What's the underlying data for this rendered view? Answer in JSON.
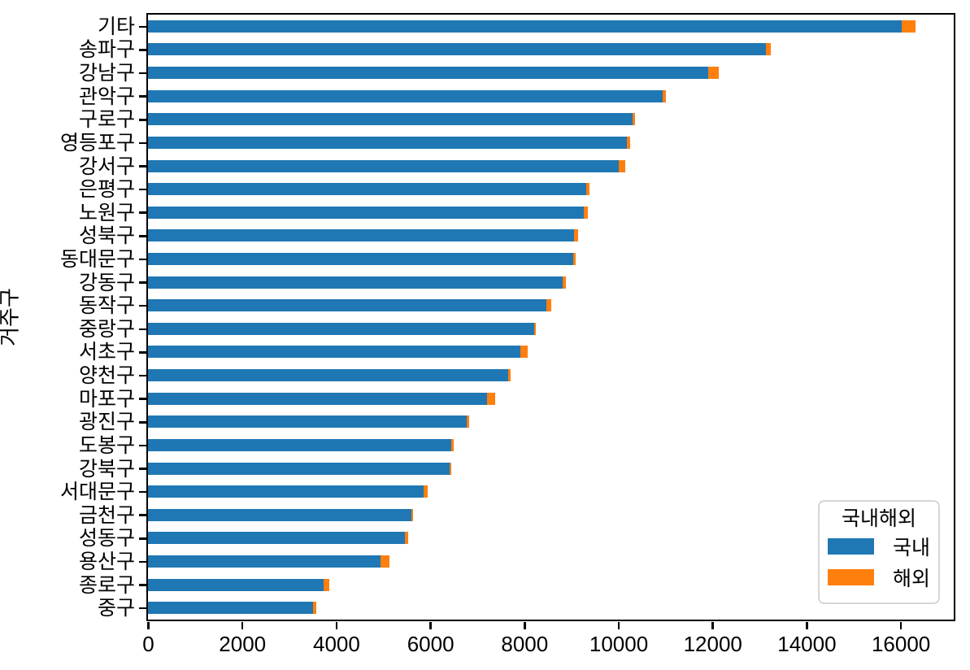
{
  "chart_data": {
    "type": "bar",
    "orientation": "horizontal",
    "stacked": true,
    "title": "",
    "xlabel": "",
    "ylabel": "거주구",
    "xlim": [
      0,
      17130
    ],
    "xticks": [
      0,
      2000,
      4000,
      6000,
      8000,
      10000,
      12000,
      14000,
      16000
    ],
    "grid": false,
    "legend_title": "국내해외",
    "legend_position": "lower right",
    "categories": [
      "기타",
      "송파구",
      "강남구",
      "관악구",
      "구로구",
      "영등포구",
      "강서구",
      "은평구",
      "노원구",
      "성북구",
      "동대문구",
      "강동구",
      "동작구",
      "중랑구",
      "서초구",
      "양천구",
      "마포구",
      "광진구",
      "도봉구",
      "강북구",
      "서대문구",
      "금천구",
      "성동구",
      "용산구",
      "종로구",
      "중구"
    ],
    "series": [
      {
        "name": "국내",
        "color": "#1f77b4",
        "values": [
          16030,
          13135,
          11910,
          10935,
          10310,
          10180,
          10010,
          9320,
          9265,
          9050,
          9040,
          8815,
          8470,
          8210,
          7910,
          7650,
          7200,
          6770,
          6455,
          6415,
          5860,
          5605,
          5470,
          4950,
          3740,
          3510
        ]
      },
      {
        "name": "해외",
        "color": "#ff7f0e",
        "values": [
          290,
          105,
          230,
          70,
          40,
          75,
          140,
          70,
          85,
          95,
          45,
          75,
          105,
          35,
          170,
          60,
          175,
          60,
          40,
          30,
          85,
          30,
          60,
          190,
          110,
          60
        ]
      }
    ]
  },
  "colors": {
    "domestic": "#1f77b4",
    "overseas": "#ff7f0e",
    "spine": "#000000",
    "legend_border": "#d5d5d5",
    "background": "#ffffff"
  }
}
